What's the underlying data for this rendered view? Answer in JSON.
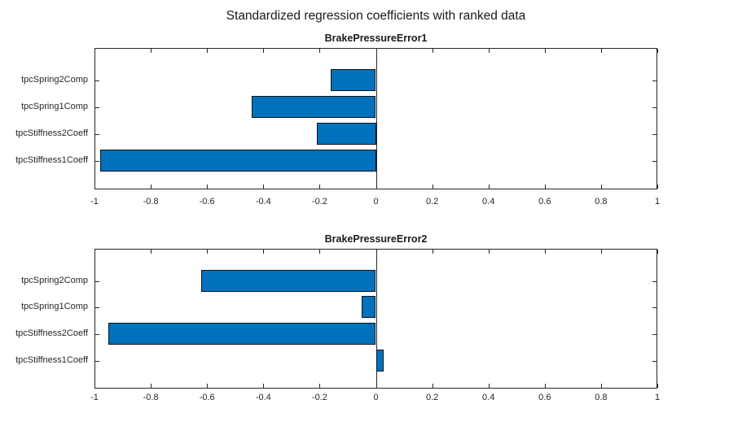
{
  "figure": {
    "title": "Standardized regression coefficients with ranked data",
    "background": "#ffffff"
  },
  "colors": {
    "bar_fill": "#0072BD",
    "bar_edge": "#121212",
    "axis": "#262626",
    "text": "#1a1a1a"
  },
  "chart_data": [
    {
      "type": "bar",
      "orientation": "horizontal",
      "title": "BrakePressureError1",
      "categories_top_to_bottom": [
        "tpcSpring2Comp",
        "tpcSpring1Comp",
        "tpcStiffness2Coeff",
        "tpcStiffness1Coeff"
      ],
      "values_top_to_bottom": [
        -0.16,
        -0.44,
        -0.21,
        -0.98
      ],
      "xlim": [
        -1,
        1
      ],
      "xticks": [
        -1,
        -0.8,
        -0.6,
        -0.4,
        -0.2,
        0,
        0.2,
        0.4,
        0.6,
        0.8,
        1
      ],
      "xtick_labels": [
        "-1",
        "-0.8",
        "-0.6",
        "-0.4",
        "-0.2",
        "0",
        "0.2",
        "0.4",
        "0.6",
        "0.8",
        "1"
      ],
      "grid": "off",
      "legend": "none",
      "baseline_at": 0
    },
    {
      "type": "bar",
      "orientation": "horizontal",
      "title": "BrakePressureError2",
      "categories_top_to_bottom": [
        "tpcSpring2Comp",
        "tpcSpring1Comp",
        "tpcStiffness2Coeff",
        "tpcStiffness1Coeff"
      ],
      "values_top_to_bottom": [
        -0.62,
        -0.05,
        -0.95,
        0.025
      ],
      "xlim": [
        -1,
        1
      ],
      "xticks": [
        -1,
        -0.8,
        -0.6,
        -0.4,
        -0.2,
        0,
        0.2,
        0.4,
        0.6,
        0.8,
        1
      ],
      "xtick_labels": [
        "-1",
        "-0.8",
        "-0.6",
        "-0.4",
        "-0.2",
        "0",
        "0.2",
        "0.4",
        "0.6",
        "0.8",
        "1"
      ],
      "grid": "off",
      "legend": "none",
      "baseline_at": 0
    }
  ]
}
